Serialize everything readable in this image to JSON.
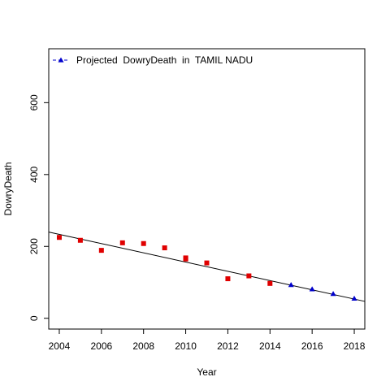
{
  "chart_data": {
    "type": "scatter",
    "title": "",
    "xlabel": "Year",
    "ylabel": "DowryDeath",
    "xlim": [
      2003.5,
      2018.5
    ],
    "ylim": [
      -30,
      750
    ],
    "x_ticks": [
      2004,
      2006,
      2008,
      2010,
      2012,
      2014,
      2016,
      2018
    ],
    "y_ticks": [
      0,
      200,
      400,
      600
    ],
    "legend": {
      "position": "top-left",
      "label": "Projected  DowryDeath  in  TAMIL NADU",
      "marker": "triangle",
      "color": "#0000CC"
    },
    "observed": {
      "marker": "square",
      "color": "#E00000",
      "points": [
        {
          "x": 2004,
          "y": 225
        },
        {
          "x": 2005,
          "y": 217
        },
        {
          "x": 2006,
          "y": 189
        },
        {
          "x": 2007,
          "y": 210
        },
        {
          "x": 2008,
          "y": 208
        },
        {
          "x": 2009,
          "y": 196
        },
        {
          "x": 2010,
          "y": 165
        },
        {
          "x": 2010,
          "y": 168
        },
        {
          "x": 2011,
          "y": 154
        },
        {
          "x": 2012,
          "y": 110
        },
        {
          "x": 2013,
          "y": 118
        },
        {
          "x": 2014,
          "y": 97
        }
      ]
    },
    "projected": {
      "marker": "triangle",
      "color": "#0000CC",
      "points": [
        {
          "x": 2015,
          "y": 93
        },
        {
          "x": 2016,
          "y": 81
        },
        {
          "x": 2017,
          "y": 68
        },
        {
          "x": 2018,
          "y": 55
        }
      ]
    },
    "trend_line": {
      "color": "#000000",
      "from": {
        "x": 2003.5,
        "y": 240
      },
      "to": {
        "x": 2018.5,
        "y": 47
      }
    }
  }
}
